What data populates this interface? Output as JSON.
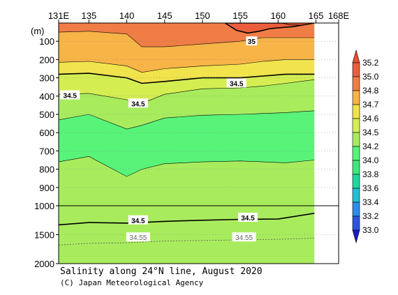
{
  "chart_data": {
    "type": "heatmap",
    "title": "Salinity along 24°N line, August 2020",
    "credit": "(C) Japan Meteorological Agency",
    "y_unit_label": "(m)",
    "x_ticks": [
      "131E",
      "135",
      "140",
      "145",
      "150",
      "155",
      "160",
      "165",
      "168E"
    ],
    "x_tick_values": [
      131,
      135,
      140,
      145,
      150,
      155,
      160,
      165,
      168
    ],
    "x_range": [
      131,
      168
    ],
    "y_ticks_upper": [
      100,
      200,
      300,
      400,
      500,
      600,
      700,
      800,
      900,
      1000
    ],
    "y_ticks_lower": [
      1500,
      2000
    ],
    "y_break_depth": 1000,
    "y_range": [
      0,
      2000
    ],
    "data_east_limit": 164.8,
    "colorbar": {
      "levels": [
        33.0,
        33.2,
        33.4,
        33.6,
        33.8,
        34.0,
        34.2,
        34.5,
        34.6,
        34.7,
        34.8,
        35.0,
        35.2
      ],
      "colors": [
        "#1a1acc",
        "#2b55e0",
        "#2f8de8",
        "#22bfd0",
        "#1ed89e",
        "#3fe87a",
        "#58f47a",
        "#a8ec5e",
        "#d4ee52",
        "#f0e34c",
        "#f7b447",
        "#f07d45",
        "#ea5e3e",
        "#e8502f"
      ]
    },
    "layers": [
      {
        "min": 34.8,
        "max": 35.0,
        "top": [
          0,
          0,
          0,
          0,
          0,
          0,
          0,
          0,
          0,
          0
        ],
        "bottom": [
          50,
          45,
          60,
          130,
          130,
          115,
          100,
          80,
          80,
          80
        ]
      },
      {
        "min": 34.7,
        "max": 34.8,
        "top": [
          50,
          45,
          60,
          130,
          130,
          115,
          100,
          80,
          80,
          80
        ],
        "bottom": [
          215,
          210,
          235,
          270,
          250,
          235,
          225,
          210,
          200,
          200
        ]
      },
      {
        "min": 34.6,
        "max": 34.7,
        "top": [
          215,
          210,
          235,
          270,
          250,
          235,
          225,
          210,
          200,
          200
        ],
        "bottom": [
          280,
          275,
          300,
          330,
          320,
          300,
          300,
          290,
          280,
          280
        ]
      },
      {
        "min": 34.5,
        "max": 34.6,
        "top": [
          280,
          275,
          300,
          330,
          320,
          300,
          300,
          290,
          280,
          280
        ],
        "bottom": [
          390,
          385,
          420,
          440,
          390,
          360,
          355,
          345,
          330,
          310
        ]
      },
      {
        "min": 34.2,
        "max": 34.5,
        "top": [
          390,
          385,
          420,
          440,
          390,
          360,
          355,
          345,
          330,
          310
        ],
        "bottom": [
          530,
          500,
          580,
          560,
          520,
          505,
          500,
          495,
          490,
          480
        ]
      },
      {
        "min": 34.0,
        "max": 34.2,
        "top": [
          530,
          500,
          580,
          560,
          520,
          505,
          500,
          495,
          490,
          480
        ],
        "bottom": [
          760,
          730,
          840,
          800,
          770,
          760,
          755,
          760,
          765,
          750
        ]
      },
      {
        "min": 34.2,
        "max": 34.5,
        "top": [
          760,
          730,
          840,
          800,
          770,
          760,
          755,
          760,
          765,
          750
        ],
        "bottom": [
          2000,
          2000,
          2000,
          2000,
          2000,
          2000,
          2000,
          2000,
          2000,
          2000
        ]
      }
    ],
    "layer_x": [
      131,
      135,
      140,
      142,
      145,
      150,
      155,
      158,
      161,
      164.8
    ],
    "high_salinity_cores": [
      {
        "label": "35",
        "value": 35.0,
        "lon": [
          153,
          154.5,
          156,
          157.5,
          159,
          160.5,
          162,
          164.8
        ],
        "depth": [
          0,
          40,
          55,
          45,
          30,
          25,
          20,
          0
        ]
      },
      {
        "value": 35.2,
        "lon": [
          160.5,
          161.5,
          163,
          164.8
        ],
        "depth": [
          0,
          10,
          12,
          0
        ]
      }
    ],
    "contour_labels": [
      {
        "text": "34.5",
        "lon": 132.5,
        "depth": 395
      },
      {
        "text": "34.5",
        "lon": 141.5,
        "depth": 440
      },
      {
        "text": "34.5",
        "lon": 154.5,
        "depth": 330
      },
      {
        "text": "35",
        "lon": 156.5,
        "depth": 100
      },
      {
        "text": "34.5",
        "lon": 141.5,
        "depth": 1250
      },
      {
        "text": "34.5",
        "lon": 156,
        "depth": 1205
      },
      {
        "text": "34.55",
        "lon": 141.5,
        "depth": 1545
      },
      {
        "text": "34.55",
        "lon": 155.5,
        "depth": 1545
      }
    ],
    "deep_contour_345": {
      "lon": [
        131,
        135,
        140,
        145,
        150,
        155,
        160,
        164.8
      ],
      "depth": [
        1330,
        1290,
        1300,
        1270,
        1250,
        1235,
        1230,
        1130
      ]
    },
    "deep_contour_3455": {
      "lon": [
        131,
        135,
        140,
        145,
        150,
        155,
        160,
        164.8
      ],
      "depth": [
        1680,
        1650,
        1640,
        1610,
        1600,
        1590,
        1580,
        1560
      ]
    }
  }
}
